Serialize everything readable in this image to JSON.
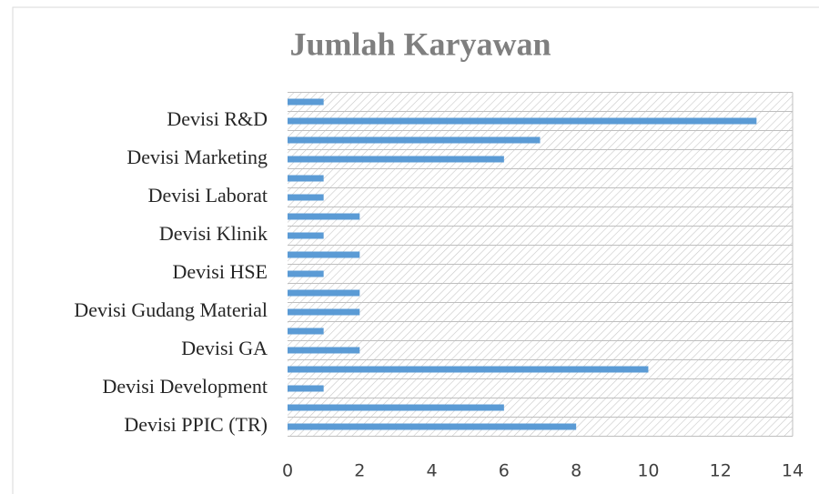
{
  "chart_data": {
    "type": "barh",
    "title": "Jumlah Karyawan",
    "categories": [
      "Devisi PPIC (TR)",
      null,
      "Devisi Development",
      null,
      "Devisi GA",
      null,
      "Devisi Gudang Material",
      null,
      "Devisi HSE",
      null,
      "Devisi Klinik",
      null,
      "Devisi Laborat",
      null,
      "Devisi Marketing",
      null,
      "Devisi R&D",
      null
    ],
    "values": [
      8,
      6,
      1,
      10,
      2,
      1,
      2,
      2,
      1,
      2,
      1,
      2,
      1,
      1,
      6,
      7,
      13,
      1
    ],
    "color": "#5b9bd5",
    "xlim": [
      0,
      14
    ],
    "xticks": [
      0,
      2,
      4,
      6,
      8,
      10,
      12,
      14
    ],
    "grid": false
  }
}
